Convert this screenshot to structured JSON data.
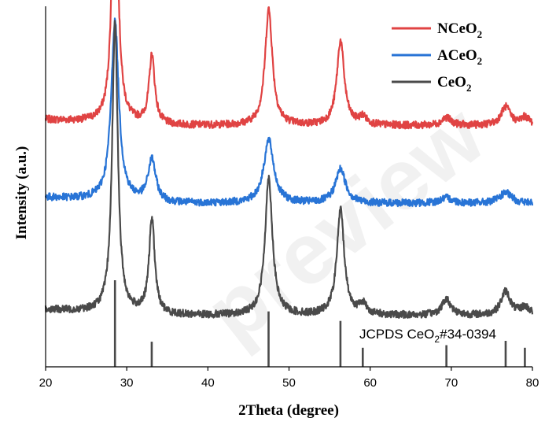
{
  "chart_data": {
    "type": "line",
    "xlabel": "2Theta (degree)",
    "ylabel": "Intensity (a.u.)",
    "xlim": [
      20,
      80
    ],
    "xticks": [
      20,
      30,
      40,
      50,
      60,
      70,
      80
    ],
    "y_ticks_shown": false,
    "grid": false,
    "legend_position": "top-right",
    "legend": [
      {
        "base": "NCeO",
        "sub": "2",
        "series": "NCeO2"
      },
      {
        "base": "ACeO",
        "sub": "2",
        "series": "ACeO2"
      },
      {
        "base": "CeO",
        "sub": "2",
        "series": "CeO2"
      }
    ],
    "series": [
      {
        "name": "NCeO2",
        "color": "#e04343",
        "baseline": 0.72,
        "peaks": [
          {
            "x": 28.55,
            "height": 1.08
          },
          {
            "x": 33.1,
            "height": 0.26
          },
          {
            "x": 47.5,
            "height": 0.44
          },
          {
            "x": 56.35,
            "height": 0.32
          },
          {
            "x": 59.1,
            "height": 0.03
          },
          {
            "x": 69.4,
            "height": 0.03
          },
          {
            "x": 76.7,
            "height": 0.07
          },
          {
            "x": 79.1,
            "height": 0.03
          }
        ]
      },
      {
        "name": "ACeO2",
        "color": "#2874d6",
        "baseline": 0.425,
        "peaks": [
          {
            "x": 28.55,
            "height": 0.68
          },
          {
            "x": 33.1,
            "height": 0.16
          },
          {
            "x": 47.5,
            "height": 0.24
          },
          {
            "x": 56.35,
            "height": 0.13
          },
          {
            "x": 69.4,
            "height": 0.02
          },
          {
            "x": 76.7,
            "height": 0.04
          }
        ]
      },
      {
        "name": "CeO2",
        "color": "#4a4a4a",
        "baseline": 0.0,
        "peaks": [
          {
            "x": 28.55,
            "height": 1.1
          },
          {
            "x": 33.1,
            "height": 0.36
          },
          {
            "x": 47.5,
            "height": 0.52
          },
          {
            "x": 56.35,
            "height": 0.4
          },
          {
            "x": 59.1,
            "height": 0.04
          },
          {
            "x": 69.4,
            "height": 0.06
          },
          {
            "x": 76.7,
            "height": 0.09
          },
          {
            "x": 79.1,
            "height": 0.03
          }
        ]
      }
    ],
    "reference": {
      "label_prefix": "JCPDS CeO",
      "label_sub": "2",
      "label_suffix": "#34-0394",
      "lines": [
        {
          "x": 28.55,
          "intensity": 100
        },
        {
          "x": 33.08,
          "intensity": 29
        },
        {
          "x": 47.48,
          "intensity": 64
        },
        {
          "x": 56.34,
          "intensity": 53
        },
        {
          "x": 59.09,
          "intensity": 22
        },
        {
          "x": 69.4,
          "intensity": 25
        },
        {
          "x": 76.7,
          "intensity": 30
        },
        {
          "x": 79.07,
          "intensity": 22
        }
      ]
    }
  }
}
